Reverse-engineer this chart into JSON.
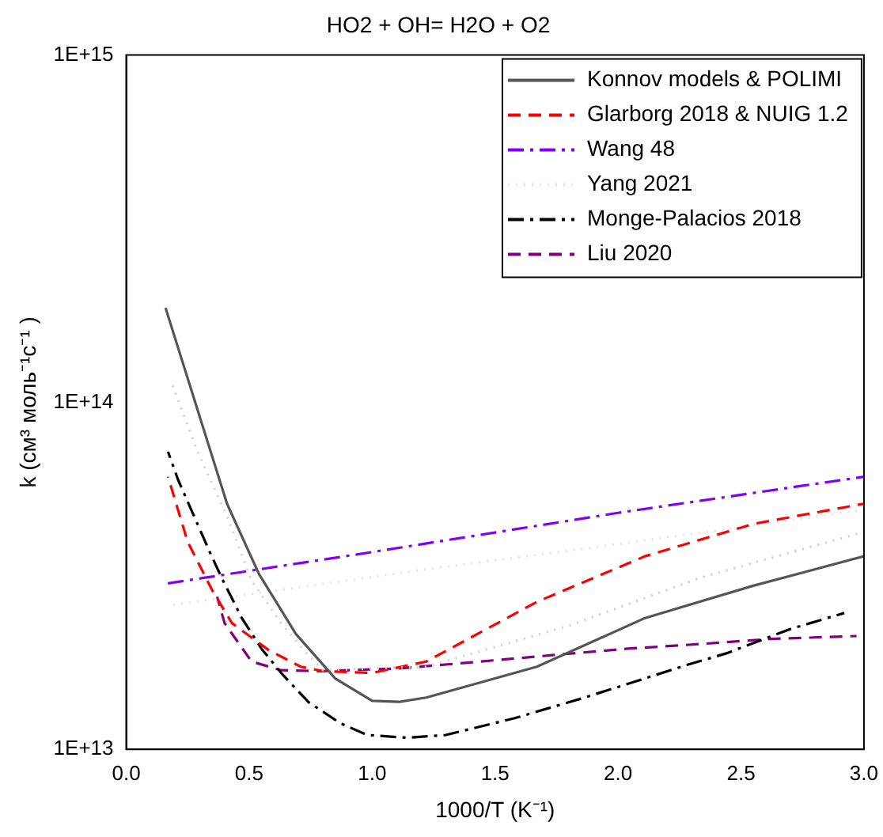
{
  "chart_data": {
    "type": "line",
    "title": "HO2 + OH= H2O + O2",
    "xlabel": "1000/T (K⁻¹)",
    "ylabel": "k (см³ моль⁻¹с⁻¹ )",
    "xlim": [
      0,
      3
    ],
    "xticks": [
      {
        "value": 0,
        "label": "0.0"
      },
      {
        "value": 0.5,
        "label": "0.5"
      },
      {
        "value": 1,
        "label": "1.0"
      },
      {
        "value": 1.5,
        "label": "1.5"
      },
      {
        "value": 2,
        "label": "2.0"
      },
      {
        "value": 2.5,
        "label": "2.5"
      },
      {
        "value": 3,
        "label": "3.0"
      }
    ],
    "ylim": [
      10000000000000.0,
      1000000000000000.0
    ],
    "yticks": [
      {
        "value": 10000000000000.0,
        "label": "1E+13"
      },
      {
        "value": 100000000000000.0,
        "label": "1E+14"
      },
      {
        "value": 1000000000000000.0,
        "label": "1E+15"
      }
    ],
    "log": "y",
    "grid": false,
    "legend": "top right",
    "marker": "none",
    "series": [
      {
        "name": "Konnov models & POLIMI",
        "color": "#555555",
        "line_style": "solid",
        "x": [
          0.16,
          0.41,
          0.54,
          0.69,
          0.85,
          1.0,
          1.11,
          1.22,
          1.67,
          2.11,
          2.55,
          3.0
        ],
        "values": [
          187000000000000.0,
          51000000000000.0,
          32000000000000.0,
          21500000000000.0,
          16000000000000.0,
          13800000000000.0,
          13700000000000.0,
          14100000000000.0,
          17300000000000.0,
          23900000000000.0,
          29600000000000.0,
          36000000000000.0
        ]
      },
      {
        "color": "#d0d0d0",
        "line_style": "dotted",
        "x": [
          0.18,
          0.29,
          0.41,
          0.51,
          0.63,
          0.74,
          0.8,
          1.22,
          1.8,
          2.34,
          3.0
        ],
        "values": [
          116000000000000.0,
          72000000000000.0,
          47000000000000.0,
          30600000000000.0,
          23100000000000.0,
          18700000000000.0,
          16900000000000.0,
          17300000000000.0,
          22700000000000.0,
          31300000000000.0,
          42300000000000.0
        ]
      },
      {
        "name": "Glarborg 2018 & NUIG 1.2",
        "color": "#ff0000",
        "line_style": "dashed",
        "x": [
          0.17,
          0.25,
          0.35,
          0.43,
          0.58,
          0.71,
          0.8,
          1.0,
          1.22,
          1.67,
          2.11,
          2.55,
          3.0
        ],
        "values": [
          61000000000000.0,
          39600000000000.0,
          28700000000000.0,
          23100000000000.0,
          19300000000000.0,
          17300000000000.0,
          16800000000000.0,
          16600000000000.0,
          17900000000000.0,
          26600000000000.0,
          36000000000000.0,
          44600000000000.0,
          51000000000000.0
        ]
      },
      {
        "name": "Wang 48",
        "color": "#8000ff",
        "line_style": "dashdot",
        "x": [
          0.16,
          1,
          2,
          3
        ],
        "values": [
          30000000000000.0,
          37000000000000.0,
          48000000000000.0,
          61000000000000.0
        ]
      },
      {
        "name": "Yang 2021",
        "color": "#e4e4e4",
        "line_style": "dotted",
        "x": [
          0.18,
          1.22,
          2,
          3
        ],
        "values": [
          26000000000000.0,
          33000000000000.0,
          39000000000000.0,
          49000000000000.0
        ]
      },
      {
        "name": "Monge-Palacios 2018",
        "color": "#000000",
        "line_style": "dashdot",
        "x": [
          0.17,
          0.21,
          0.27,
          0.34,
          0.39,
          0.47,
          0.55,
          0.63,
          0.74,
          0.87,
          0.98,
          1.14,
          1.3,
          1.58,
          1.85,
          2.01,
          2.28,
          2.44,
          2.7,
          2.92
        ],
        "values": [
          72000000000000.0,
          60000000000000.0,
          48000000000000.0,
          37000000000000.0,
          31000000000000.0,
          23900000000000.0,
          19500000000000.0,
          16600000000000.0,
          13700000000000.0,
          11900000000000.0,
          11000000000000.0,
          10800000000000.0,
          11000000000000.0,
          12300000000000.0,
          14000000000000.0,
          15200000000000.0,
          17500000000000.0,
          18900000000000.0,
          22200000000000.0,
          24700000000000.0
        ]
      },
      {
        "name": "Liu 2020",
        "color": "#800080",
        "line_style": "dashed",
        "x": [
          0.37,
          0.4,
          0.51,
          0.63,
          0.79,
          1.11,
          1.44,
          1.74,
          2.04,
          2.33,
          2.62,
          2.97
        ],
        "values": [
          27500000000000.0,
          23100000000000.0,
          17900000000000.0,
          16900000000000.0,
          16800000000000.0,
          17100000000000.0,
          17900000000000.0,
          18700000000000.0,
          19500000000000.0,
          20100000000000.0,
          20800000000000.0,
          21200000000000.0
        ]
      }
    ]
  }
}
